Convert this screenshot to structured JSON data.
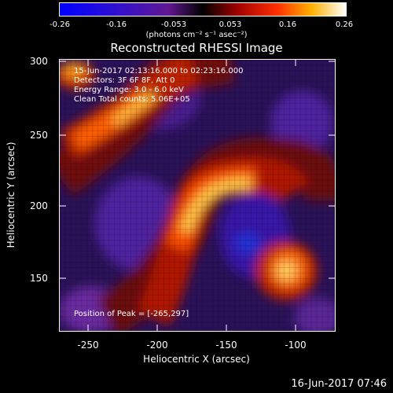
{
  "colorbar": {
    "ticks": [
      "-0.26",
      "-0.16",
      "-0.053",
      "0.053",
      "0.16",
      "0.26"
    ],
    "units": "(photons cm⁻² s⁻¹ asec⁻²)"
  },
  "title": "Reconstructed RHESSI Image",
  "info": {
    "time": "15-Jun-2017 02:13:16.000 to 02:23:16.000",
    "detectors": "Detectors: 3F 6F 8F, Att 0",
    "energy": "Energy Range: 3.0 - 6.0 keV",
    "method": "Clean     Total counts: 5.06E+05",
    "peak": "Position of Peak = [-265,297]"
  },
  "axes": {
    "xlabel": "Heliocentric X (arcsec)",
    "ylabel": "Heliocentric Y (arcsec)",
    "xticks": [
      "-250",
      "-200",
      "-150",
      "-100"
    ],
    "yticks": [
      "300",
      "250",
      "200",
      "150"
    ]
  },
  "footer": "16-Jun-2017 07:46"
}
